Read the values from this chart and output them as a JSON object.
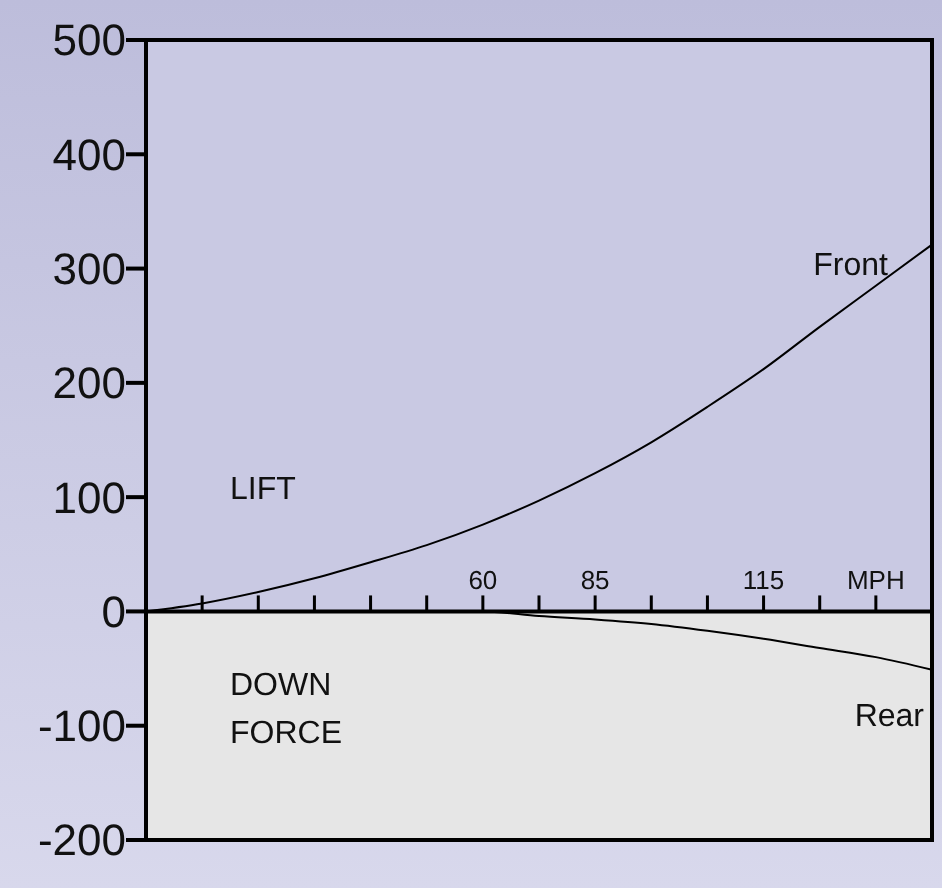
{
  "chart_data": {
    "type": "line",
    "categories": [
      null,
      null,
      null,
      null,
      null,
      null,
      "60",
      null,
      "85",
      null,
      null,
      "115",
      null,
      "MPH",
      null
    ],
    "series": [
      {
        "name": "Front",
        "color": "#000000",
        "values": [
          0,
          7,
          17,
          29,
          43,
          58,
          76,
          97,
          121,
          148,
          179,
          212,
          249,
          285,
          321
        ]
      },
      {
        "name": "Rear",
        "color": "#000000",
        "values": [
          0,
          0,
          0,
          0,
          0,
          0,
          0,
          -4,
          -7,
          -11,
          -17,
          -24,
          -32,
          -40,
          -51
        ]
      }
    ],
    "ylim": [
      -200,
      500
    ],
    "yticks": [
      -200,
      -100,
      0,
      100,
      200,
      300,
      400,
      500
    ],
    "bands": [
      {
        "axis": "y",
        "from": 0,
        "to": 500,
        "label": "LIFT",
        "color": "#c9c9e3"
      },
      {
        "axis": "y",
        "from": -200,
        "to": 0,
        "label": "DOWN FORCE",
        "color": "#e6e6e6"
      }
    ],
    "legend": false,
    "marker": "none",
    "line_style": "solid",
    "grid": false
  }
}
